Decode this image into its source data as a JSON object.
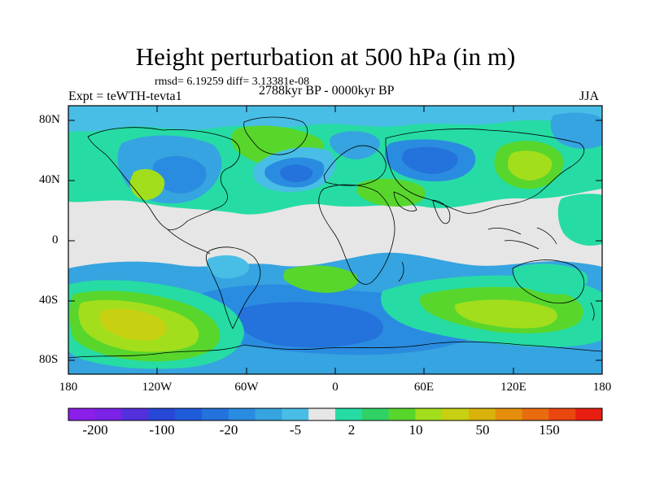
{
  "figure": {
    "title": "Height perturbation at 500 hPa (in m)",
    "stats": "rmsd= 6.19259 diff= 3.13381e-08",
    "experiment": "Expt = teWTH-tevta1",
    "period": "2788kyr BP - 0000kyr BP",
    "season": "JJA"
  },
  "axes": {
    "lat_labels": [
      "80N",
      "40N",
      "0",
      "40S",
      "80S"
    ],
    "lon_labels": [
      "180",
      "120W",
      "60W",
      "0",
      "60E",
      "120E",
      "180"
    ]
  },
  "colorbar": {
    "colors": [
      "#8c1eea",
      "#7a22e6",
      "#5330dc",
      "#2748d6",
      "#1f5cda",
      "#2472dc",
      "#2a8ce0",
      "#36a4e0",
      "#48bee6",
      "#e6e6e6",
      "#26dca4",
      "#30d266",
      "#58d62c",
      "#a2de1c",
      "#c8d012",
      "#dab20c",
      "#e48e0c",
      "#e86c0e",
      "#ea4610",
      "#e81e10"
    ],
    "labels": [
      "-200",
      "-100",
      "-20",
      "-5",
      "2",
      "10",
      "50",
      "150"
    ]
  },
  "map_data": {
    "type": "filled-contour",
    "variable": "500 hPa height perturbation (m)",
    "background_level": "near zero",
    "regions": [
      {
        "name": "central-north-atlantic-low",
        "level": "-20"
      },
      {
        "name": "western-north-america-low",
        "level": "-10"
      },
      {
        "name": "siberia-low",
        "level": "-10"
      },
      {
        "name": "southern-ocean-low",
        "level": "-20"
      },
      {
        "name": "south-pacific-high",
        "level": "50"
      },
      {
        "name": "greenland-high",
        "level": "10"
      },
      {
        "name": "east-asia-high",
        "level": "10"
      },
      {
        "name": "south-indian-ocean-high",
        "level": "10"
      }
    ]
  }
}
